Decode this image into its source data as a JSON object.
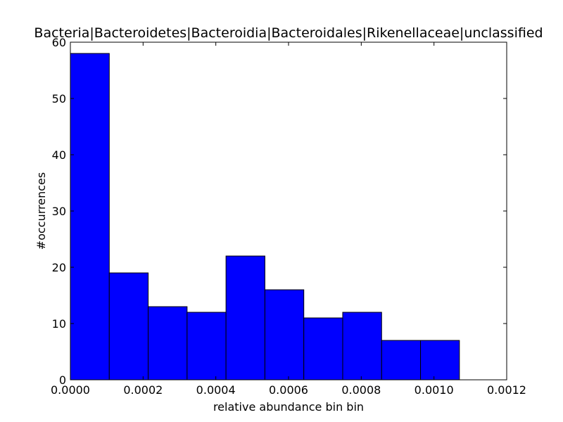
{
  "chart_data": {
    "type": "bar",
    "title": "Bacteria|Bacteroidetes|Bacteroidia|Bacteroidales|Rikenellaceae|unclassified",
    "xlabel": "relative abundance bin bin",
    "ylabel": "#occurrences",
    "bin_edges": [
      0.0,
      0.000107,
      0.000214,
      0.000321,
      0.000428,
      0.000535,
      0.000642,
      0.000749,
      0.000856,
      0.000963,
      0.00107
    ],
    "values": [
      58,
      19,
      13,
      12,
      22,
      16,
      11,
      12,
      7,
      7
    ],
    "xlim": [
      0,
      0.0012
    ],
    "ylim": [
      0,
      60
    ],
    "xticks": [
      "0.0000",
      "0.0002",
      "0.0004",
      "0.0006",
      "0.0008",
      "0.0010",
      "0.0012"
    ],
    "xtick_values": [
      0,
      0.0002,
      0.0004,
      0.0006,
      0.0008,
      0.001,
      0.0012
    ],
    "yticks": [
      "0",
      "10",
      "20",
      "30",
      "40",
      "50",
      "60"
    ],
    "ytick_values": [
      0,
      10,
      20,
      30,
      40,
      50,
      60
    ],
    "bar_color": "#0000ff",
    "edge_color": "#000000",
    "grid": false,
    "legend": "none"
  }
}
